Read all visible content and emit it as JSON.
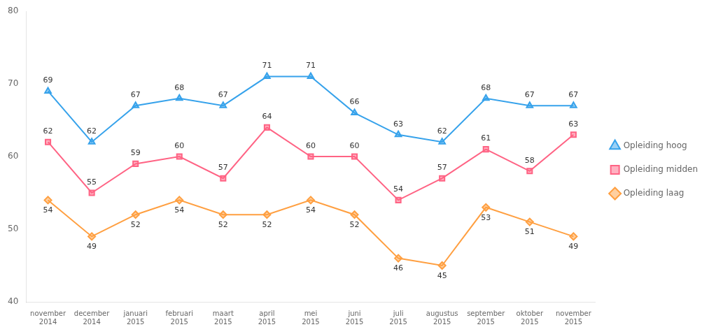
{
  "chart_data": {
    "type": "line",
    "categories": [
      "november\n2014",
      "december\n2014",
      "januari\n2015",
      "februari\n2015",
      "maart\n2015",
      "april\n2015",
      "mei\n2015",
      "juni\n2015",
      "juli\n2015",
      "augustus\n2015",
      "september\n2015",
      "oktober\n2015",
      "november\n2015"
    ],
    "series": [
      {
        "name": "Opleiding hoog",
        "marker": "triangle",
        "values": [
          69,
          62,
          67,
          68,
          67,
          71,
          71,
          66,
          63,
          62,
          68,
          67,
          67
        ]
      },
      {
        "name": "Opleiding midden",
        "marker": "square",
        "values": [
          62,
          55,
          59,
          60,
          57,
          64,
          60,
          60,
          54,
          57,
          61,
          58,
          63
        ]
      },
      {
        "name": "Opleiding laag",
        "marker": "diamond",
        "values": [
          54,
          49,
          52,
          54,
          52,
          52,
          54,
          52,
          46,
          45,
          53,
          51,
          49
        ]
      }
    ],
    "ylim": [
      40,
      80
    ],
    "yticks": [
      40,
      50,
      60,
      70,
      80
    ],
    "grid": false,
    "legend": "right",
    "data_labels": true
  }
}
